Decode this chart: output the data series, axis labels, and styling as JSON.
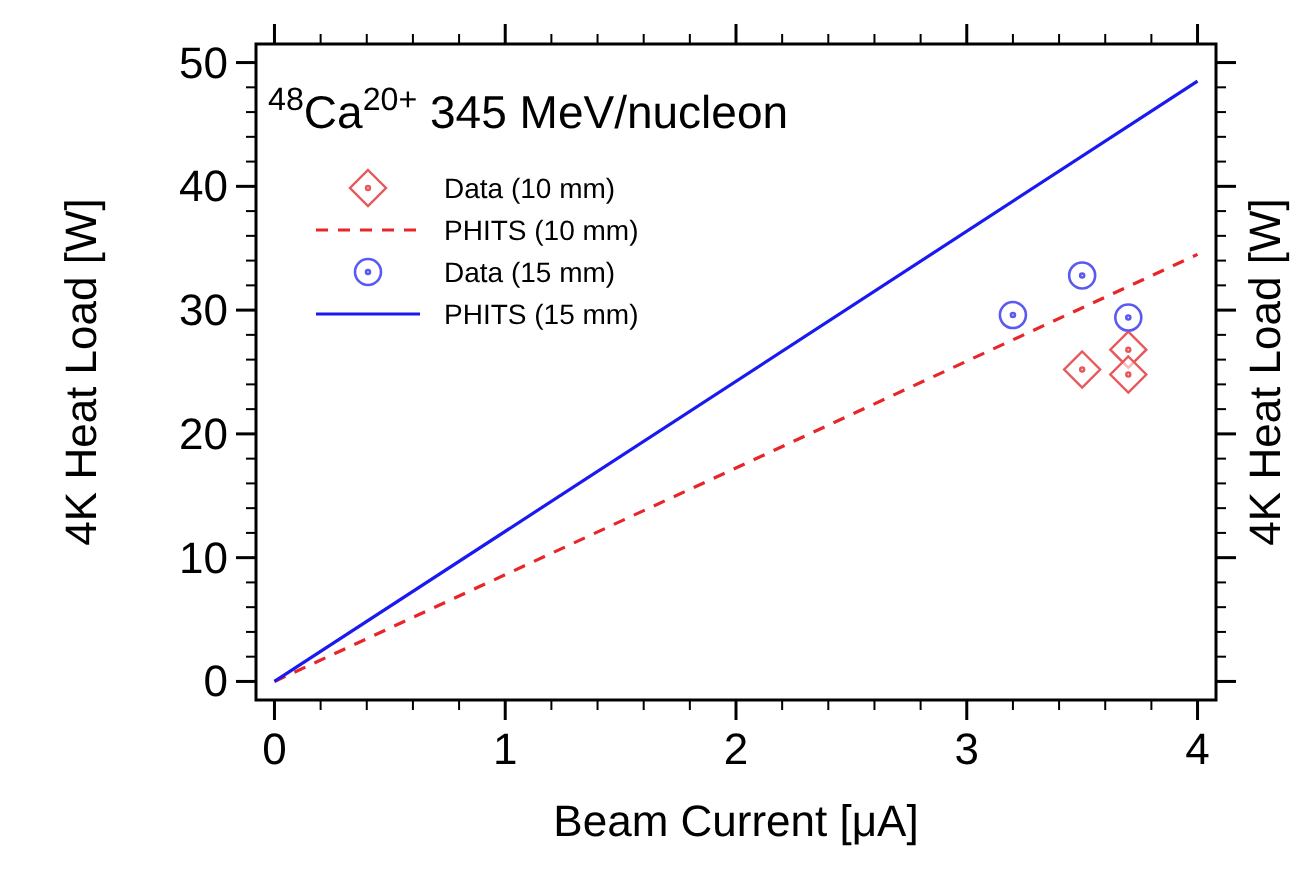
{
  "chart_data": {
    "type": "scatter",
    "title": "$^{48}$Ca$^{20+}$ 345 MeV/nucleon",
    "xlabel": "Beam Current [μA]",
    "ylabel": "4K Heat Load [W]",
    "y2label": "4K Heat Load [W]",
    "xlim": [
      -0.08,
      4.08
    ],
    "ylim": [
      -1.5,
      51.5
    ],
    "xticks": [
      0,
      1,
      2,
      3,
      4
    ],
    "yticks": [
      0,
      10,
      20,
      30,
      40,
      50
    ],
    "grid": false,
    "legend": "top left",
    "series": [
      {
        "name": "Data (10 mm)",
        "marker": "diamond",
        "color": "#e8585a",
        "x": [
          3.5,
          3.7,
          3.7
        ],
        "values": [
          25.2,
          26.8,
          24.8
        ]
      },
      {
        "name": "PHITS (10 mm)",
        "type": "line",
        "line_style": "dashed",
        "marker": "none",
        "color": "#e8262a",
        "x": [
          0,
          4
        ],
        "values": [
          0,
          34.5
        ]
      },
      {
        "name": "Data (15 mm)",
        "marker": "circle",
        "color": "#5a5af0",
        "x": [
          3.2,
          3.5,
          3.7
        ],
        "values": [
          29.6,
          32.8,
          29.4
        ]
      },
      {
        "name": "PHITS (15 mm)",
        "type": "line",
        "line_style": "solid",
        "marker": "none",
        "color": "#1a1af0",
        "x": [
          0,
          4
        ],
        "values": [
          0,
          48.5
        ]
      }
    ]
  }
}
